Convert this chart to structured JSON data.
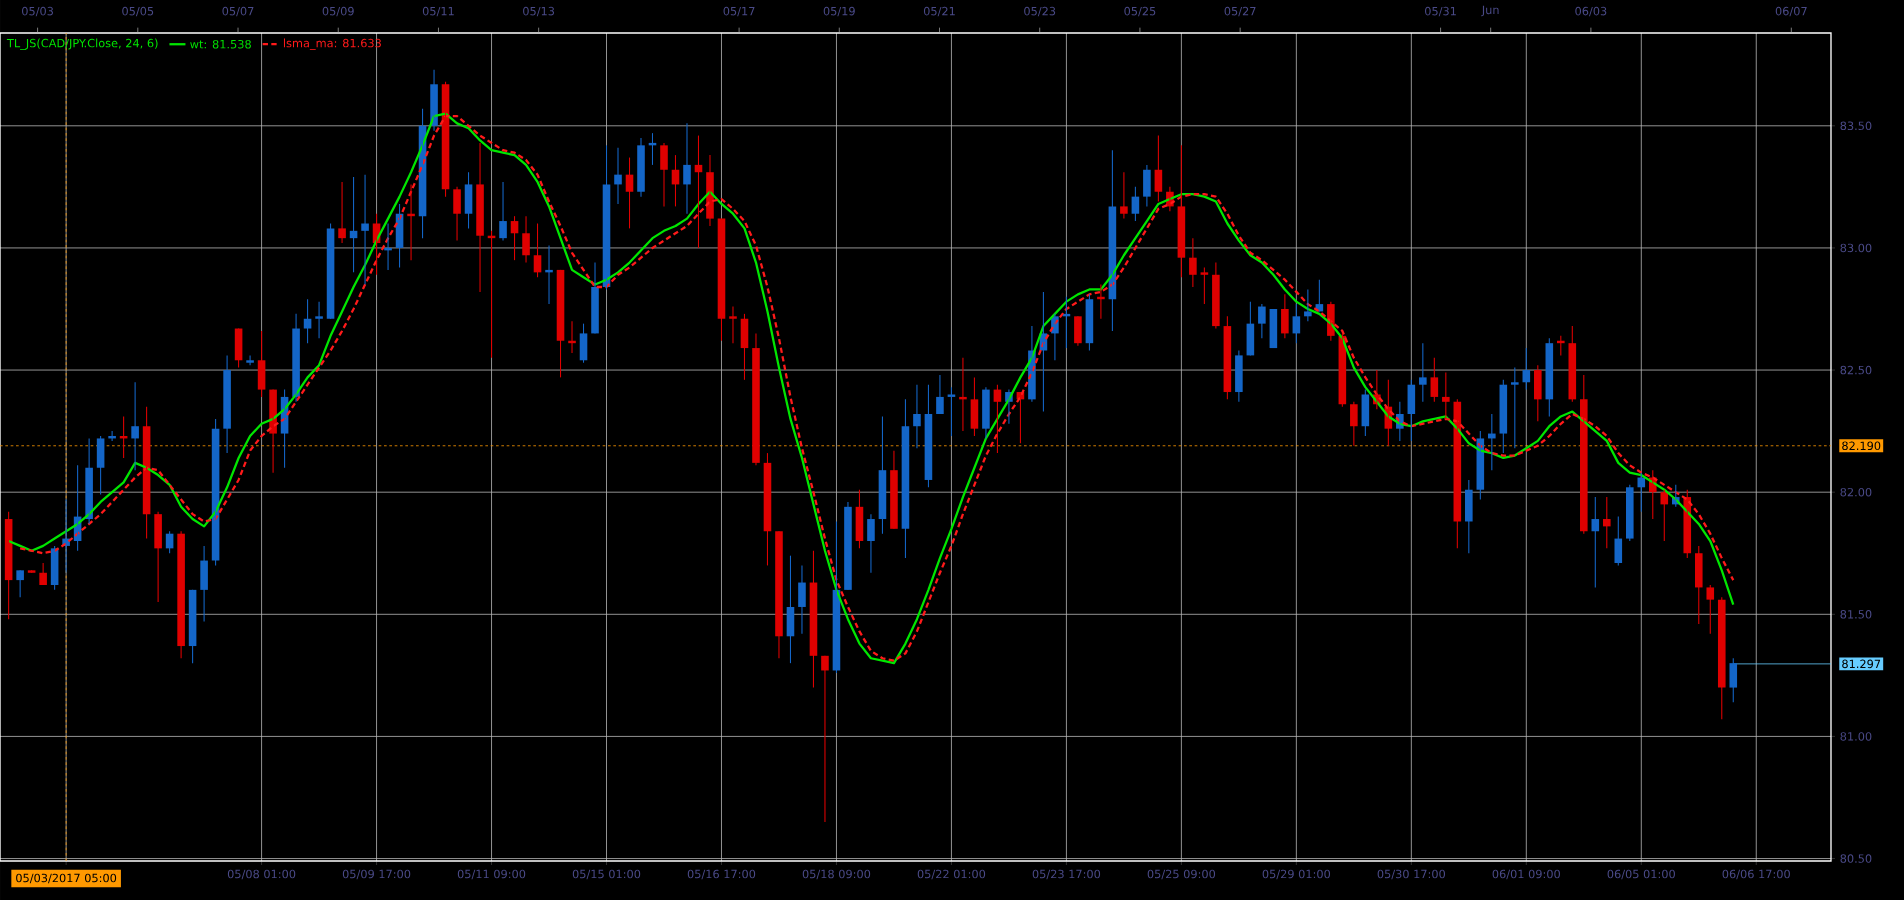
{
  "chart_data": {
    "type": "candlestick",
    "title": "TL_JS(CAD/JPY.Close, 24, 6)",
    "categories": [
      null,
      null,
      null,
      null,
      null,
      "05/03/2017 05:00",
      null,
      null,
      null,
      null,
      null,
      null,
      null,
      null,
      null,
      null,
      null,
      null,
      null,
      null,
      null,
      null,
      "05/08 01:00",
      null,
      null,
      null,
      null,
      null,
      null,
      null,
      null,
      null,
      "05/09 17:00",
      null,
      null,
      null,
      null,
      null,
      null,
      null,
      null,
      null,
      "05/11 09:00",
      null,
      null,
      null,
      null,
      null,
      null,
      null,
      null,
      null,
      "05/15 01:00",
      null,
      null,
      null,
      null,
      null,
      null,
      null,
      null,
      null,
      "05/16 17:00",
      null,
      null,
      null,
      null,
      null,
      null,
      null,
      null,
      null,
      "05/18 09:00",
      null,
      null,
      null,
      null,
      null,
      null,
      null,
      null,
      null,
      "05/22 01:00",
      null,
      null,
      null,
      null,
      null,
      null,
      null,
      null,
      null,
      "05/23 17:00",
      null,
      null,
      null,
      null,
      null,
      null,
      null,
      null,
      null,
      "05/25 09:00",
      null,
      null,
      null,
      null,
      null,
      null,
      null,
      null,
      null,
      "05/29 01:00",
      null,
      null,
      null,
      null,
      null,
      null,
      null,
      null,
      null,
      "05/30 17:00",
      null,
      null,
      null,
      null,
      null,
      null,
      null,
      null,
      null,
      "06/01 09:00",
      null,
      null,
      null,
      null,
      null,
      null,
      null,
      null,
      null,
      "06/05 01:00",
      null,
      null,
      null,
      null,
      null,
      null,
      null,
      null,
      null,
      "06/06 17:00"
    ],
    "ohlc": [
      [
        81.89,
        81.92,
        81.48,
        81.64
      ],
      [
        81.64,
        81.68,
        81.57,
        81.68
      ],
      [
        81.68,
        81.68,
        81.67,
        81.67
      ],
      [
        81.67,
        81.71,
        81.62,
        81.62
      ],
      [
        81.62,
        81.78,
        81.6,
        81.77
      ],
      [
        81.78,
        81.97,
        81.67,
        81.81
      ],
      [
        81.8,
        82.11,
        81.76,
        81.9
      ],
      [
        81.89,
        82.22,
        81.87,
        82.1
      ],
      [
        82.1,
        82.23,
        81.99,
        82.22
      ],
      [
        82.22,
        82.25,
        82.21,
        82.23
      ],
      [
        82.23,
        82.31,
        82.14,
        82.22
      ],
      [
        82.22,
        82.45,
        82.09,
        82.27
      ],
      [
        82.27,
        82.35,
        81.81,
        81.91
      ],
      [
        81.91,
        81.92,
        81.55,
        81.77
      ],
      [
        81.77,
        81.84,
        81.75,
        81.83
      ],
      [
        81.83,
        81.84,
        81.32,
        81.37
      ],
      [
        81.37,
        81.6,
        81.3,
        81.6
      ],
      [
        81.6,
        81.78,
        81.47,
        81.72
      ],
      [
        81.72,
        82.3,
        81.7,
        82.26
      ],
      [
        82.26,
        82.56,
        82.16,
        82.5
      ],
      [
        82.67,
        82.67,
        82.51,
        82.54
      ],
      [
        82.53,
        82.56,
        82.52,
        82.54
      ],
      [
        82.54,
        82.66,
        82.39,
        82.42
      ],
      [
        82.42,
        82.42,
        82.08,
        82.24
      ],
      [
        82.24,
        82.42,
        82.1,
        82.39
      ],
      [
        82.39,
        82.73,
        82.37,
        82.67
      ],
      [
        82.67,
        82.79,
        82.61,
        82.71
      ],
      [
        82.71,
        82.78,
        82.63,
        82.72
      ],
      [
        82.71,
        83.1,
        82.71,
        83.08
      ],
      [
        83.08,
        83.27,
        83.02,
        83.04
      ],
      [
        83.04,
        83.29,
        82.9,
        83.07
      ],
      [
        83.07,
        83.3,
        82.85,
        83.1
      ],
      [
        83.1,
        83.14,
        82.89,
        83.02
      ],
      [
        82.99,
        83.1,
        82.91,
        83.0
      ],
      [
        83.0,
        83.18,
        82.92,
        83.14
      ],
      [
        83.14,
        83.26,
        82.95,
        83.13
      ],
      [
        83.13,
        83.57,
        83.04,
        83.5
      ],
      [
        83.5,
        83.73,
        83.48,
        83.67
      ],
      [
        83.67,
        83.68,
        83.21,
        83.24
      ],
      [
        83.24,
        83.25,
        83.03,
        83.14
      ],
      [
        83.14,
        83.31,
        83.08,
        83.26
      ],
      [
        83.26,
        83.43,
        82.82,
        83.05
      ],
      [
        83.05,
        83.07,
        82.55,
        83.04
      ],
      [
        83.04,
        83.27,
        83.03,
        83.11
      ],
      [
        83.11,
        83.13,
        82.95,
        83.06
      ],
      [
        83.06,
        83.13,
        82.94,
        82.97
      ],
      [
        82.97,
        83.1,
        82.88,
        82.9
      ],
      [
        82.9,
        83.01,
        82.77,
        82.91
      ],
      [
        82.91,
        82.91,
        82.47,
        82.62
      ],
      [
        82.62,
        82.7,
        82.57,
        82.61
      ],
      [
        82.54,
        82.69,
        82.53,
        82.65
      ],
      [
        82.65,
        82.94,
        82.65,
        82.84
      ],
      [
        82.84,
        83.42,
        82.83,
        83.26
      ],
      [
        83.26,
        83.41,
        83.18,
        83.3
      ],
      [
        83.3,
        83.37,
        83.08,
        83.23
      ],
      [
        83.23,
        83.45,
        83.21,
        83.42
      ],
      [
        83.42,
        83.47,
        83.34,
        83.43
      ],
      [
        83.42,
        83.43,
        83.17,
        83.32
      ],
      [
        83.32,
        83.38,
        83.17,
        83.26
      ],
      [
        83.26,
        83.51,
        83.14,
        83.34
      ],
      [
        83.34,
        83.46,
        83.0,
        83.31
      ],
      [
        83.31,
        83.38,
        83.09,
        83.12
      ],
      [
        83.12,
        83.12,
        82.62,
        82.71
      ],
      [
        82.72,
        82.76,
        82.61,
        82.71
      ],
      [
        82.71,
        82.73,
        82.46,
        82.59
      ],
      [
        82.59,
        82.65,
        82.11,
        82.12
      ],
      [
        82.12,
        82.16,
        81.7,
        81.84
      ],
      [
        81.84,
        81.84,
        81.32,
        81.41
      ],
      [
        81.41,
        81.74,
        81.3,
        81.53
      ],
      [
        81.53,
        81.7,
        81.42,
        81.63
      ],
      [
        81.63,
        81.76,
        81.2,
        81.33
      ],
      [
        81.33,
        81.33,
        80.65,
        81.27
      ],
      [
        81.27,
        81.88,
        81.26,
        81.6
      ],
      [
        81.6,
        81.96,
        81.6,
        81.94
      ],
      [
        81.94,
        82.01,
        81.77,
        81.8
      ],
      [
        81.8,
        81.91,
        81.67,
        81.89
      ],
      [
        81.89,
        82.31,
        81.83,
        82.09
      ],
      [
        82.09,
        82.17,
        81.85,
        81.85
      ],
      [
        81.85,
        82.38,
        81.73,
        82.27
      ],
      [
        82.27,
        82.44,
        82.18,
        82.32
      ],
      [
        82.05,
        82.44,
        82.02,
        82.32
      ],
      [
        82.32,
        82.48,
        82.32,
        82.39
      ],
      [
        82.39,
        82.43,
        82.23,
        82.4
      ],
      [
        82.39,
        82.55,
        82.25,
        82.38
      ],
      [
        82.38,
        82.47,
        82.23,
        82.26
      ],
      [
        82.26,
        82.43,
        82.22,
        82.42
      ],
      [
        82.42,
        82.44,
        82.16,
        82.37
      ],
      [
        82.37,
        82.42,
        82.28,
        82.41
      ],
      [
        82.41,
        82.41,
        82.2,
        82.38
      ],
      [
        82.38,
        82.68,
        82.37,
        82.58
      ],
      [
        82.58,
        82.82,
        82.33,
        82.65
      ],
      [
        82.65,
        82.73,
        82.54,
        82.72
      ],
      [
        82.72,
        82.8,
        82.59,
        82.73
      ],
      [
        82.72,
        82.72,
        82.6,
        82.61
      ],
      [
        82.61,
        82.81,
        82.58,
        82.79
      ],
      [
        82.8,
        82.85,
        82.71,
        82.79
      ],
      [
        82.79,
        83.4,
        82.66,
        83.17
      ],
      [
        83.17,
        83.31,
        83.12,
        83.14
      ],
      [
        83.14,
        83.25,
        83.11,
        83.21
      ],
      [
        83.21,
        83.34,
        83.17,
        83.32
      ],
      [
        83.32,
        83.46,
        83.19,
        83.23
      ],
      [
        83.23,
        83.25,
        83.15,
        83.17
      ],
      [
        83.17,
        83.42,
        82.88,
        82.96
      ],
      [
        82.96,
        83.04,
        82.84,
        82.89
      ],
      [
        82.9,
        82.92,
        82.77,
        82.89
      ],
      [
        82.89,
        82.94,
        82.67,
        82.68
      ],
      [
        82.68,
        82.72,
        82.38,
        82.41
      ],
      [
        82.41,
        82.58,
        82.37,
        82.56
      ],
      [
        82.56,
        82.78,
        82.56,
        82.69
      ],
      [
        82.69,
        82.77,
        82.63,
        82.76
      ],
      [
        82.59,
        82.75,
        82.59,
        82.75
      ],
      [
        82.75,
        82.81,
        82.63,
        82.65
      ],
      [
        82.65,
        82.77,
        82.61,
        82.72
      ],
      [
        82.72,
        82.83,
        82.7,
        82.74
      ],
      [
        82.74,
        82.87,
        82.74,
        82.77
      ],
      [
        82.77,
        82.78,
        82.62,
        82.64
      ],
      [
        82.64,
        82.65,
        82.35,
        82.36
      ],
      [
        82.36,
        82.37,
        82.19,
        82.27
      ],
      [
        82.27,
        82.42,
        82.23,
        82.4
      ],
      [
        82.4,
        82.5,
        82.34,
        82.36
      ],
      [
        82.35,
        82.46,
        82.19,
        82.26
      ],
      [
        82.26,
        82.37,
        82.21,
        82.32
      ],
      [
        82.32,
        82.46,
        82.21,
        82.44
      ],
      [
        82.44,
        82.61,
        82.37,
        82.47
      ],
      [
        82.47,
        82.55,
        82.37,
        82.39
      ],
      [
        82.39,
        82.49,
        82.3,
        82.37
      ],
      [
        82.37,
        82.38,
        81.77,
        81.88
      ],
      [
        81.88,
        82.05,
        81.75,
        82.01
      ],
      [
        82.01,
        82.25,
        81.97,
        82.22
      ],
      [
        82.22,
        82.32,
        82.09,
        82.24
      ],
      [
        82.24,
        82.46,
        82.16,
        82.44
      ],
      [
        82.44,
        82.51,
        82.18,
        82.45
      ],
      [
        82.45,
        82.59,
        82.42,
        82.5
      ],
      [
        82.5,
        82.52,
        82.29,
        82.38
      ],
      [
        82.38,
        82.63,
        82.31,
        82.61
      ],
      [
        82.62,
        82.64,
        82.56,
        82.61
      ],
      [
        82.61,
        82.68,
        82.37,
        82.38
      ],
      [
        82.38,
        82.48,
        81.83,
        81.84
      ],
      [
        81.84,
        81.98,
        81.61,
        81.89
      ],
      [
        81.89,
        81.98,
        81.77,
        81.86
      ],
      [
        81.71,
        81.9,
        81.7,
        81.81
      ],
      [
        81.81,
        82.03,
        81.8,
        82.02
      ],
      [
        82.02,
        82.08,
        81.92,
        82.06
      ],
      [
        82.06,
        82.09,
        81.89,
        82.0
      ],
      [
        82.0,
        82.01,
        81.8,
        81.95
      ],
      [
        81.95,
        82.03,
        81.94,
        81.98
      ],
      [
        81.98,
        82.01,
        81.73,
        81.75
      ],
      [
        81.75,
        81.78,
        81.46,
        81.61
      ],
      [
        81.61,
        81.62,
        81.42,
        81.56
      ],
      [
        81.56,
        81.57,
        81.07,
        81.2
      ],
      [
        81.2,
        81.32,
        81.14,
        81.3
      ],
      null,
      null
    ],
    "series": [
      {
        "name": "wt: 81.538",
        "type": "line",
        "color": "#00e600",
        "line_style": "solid",
        "values": [
          81.8,
          81.78,
          81.76,
          81.78,
          81.81,
          81.84,
          81.87,
          81.91,
          81.96,
          82.0,
          82.04,
          82.12,
          82.1,
          82.07,
          82.03,
          81.94,
          81.89,
          81.86,
          81.92,
          82.02,
          82.14,
          82.23,
          82.28,
          82.3,
          82.34,
          82.4,
          82.47,
          82.52,
          82.64,
          82.74,
          82.84,
          82.93,
          83.03,
          83.12,
          83.21,
          83.31,
          83.42,
          83.54,
          83.55,
          83.51,
          83.49,
          83.44,
          83.4,
          83.39,
          83.38,
          83.34,
          83.27,
          83.17,
          83.04,
          82.91,
          82.88,
          82.85,
          82.87,
          82.9,
          82.94,
          82.99,
          83.04,
          83.07,
          83.09,
          83.12,
          83.18,
          83.23,
          83.18,
          83.14,
          83.08,
          82.94,
          82.74,
          82.51,
          82.3,
          82.14,
          81.95,
          81.76,
          81.6,
          81.48,
          81.38,
          81.32,
          81.31,
          81.3,
          81.38,
          81.48,
          81.6,
          81.73,
          81.85,
          81.98,
          82.1,
          82.22,
          82.3,
          82.38,
          82.47,
          82.55,
          82.68,
          82.73,
          82.78,
          82.81,
          82.83,
          82.83,
          82.89,
          82.97,
          83.04,
          83.11,
          83.18,
          83.2,
          83.22,
          83.22,
          83.21,
          83.19,
          83.1,
          83.03,
          82.97,
          82.94,
          82.89,
          82.83,
          82.78,
          82.75,
          82.73,
          82.69,
          82.63,
          82.51,
          82.43,
          82.37,
          82.31,
          82.28,
          82.27,
          82.29,
          82.3,
          82.31,
          82.26,
          82.2,
          82.17,
          82.16,
          82.14,
          82.15,
          82.18,
          82.21,
          82.27,
          82.31,
          82.33,
          82.29,
          82.25,
          82.21,
          82.12,
          82.08,
          82.07,
          82.04,
          82.01,
          81.97,
          81.92,
          81.87,
          81.8,
          81.68,
          81.54,
          null,
          null
        ]
      },
      {
        "name": "lsma_ma: 81.633",
        "type": "line",
        "color": "#ff1a1a",
        "line_style": "dashed",
        "values": [
          null,
          81.77,
          81.76,
          81.75,
          81.76,
          81.79,
          81.83,
          81.87,
          81.91,
          81.96,
          82.01,
          82.06,
          82.1,
          82.09,
          82.03,
          81.97,
          81.91,
          81.88,
          81.89,
          81.97,
          82.05,
          82.17,
          82.23,
          82.27,
          82.3,
          82.37,
          82.44,
          82.51,
          82.58,
          82.66,
          82.75,
          82.85,
          82.95,
          83.04,
          83.12,
          83.23,
          83.34,
          83.46,
          83.54,
          83.54,
          83.5,
          83.46,
          83.43,
          83.4,
          83.39,
          83.36,
          83.3,
          83.19,
          83.09,
          82.98,
          82.91,
          82.84,
          82.84,
          82.89,
          82.92,
          82.96,
          83.0,
          83.03,
          83.06,
          83.09,
          83.14,
          83.19,
          83.2,
          83.16,
          83.11,
          83.01,
          82.84,
          82.63,
          82.39,
          82.18,
          82.0,
          81.81,
          81.64,
          81.53,
          81.43,
          81.35,
          81.32,
          81.31,
          81.34,
          81.43,
          81.55,
          81.67,
          81.78,
          81.91,
          82.03,
          82.15,
          82.24,
          82.32,
          82.39,
          82.49,
          82.61,
          82.69,
          82.75,
          82.78,
          82.81,
          82.82,
          82.85,
          82.92,
          83.0,
          83.08,
          83.16,
          83.18,
          83.21,
          83.22,
          83.22,
          83.21,
          83.14,
          83.05,
          82.98,
          82.95,
          82.91,
          82.87,
          82.82,
          82.77,
          82.74,
          82.7,
          82.66,
          82.55,
          82.47,
          82.4,
          82.34,
          82.29,
          82.27,
          82.28,
          82.29,
          82.3,
          82.29,
          82.24,
          82.19,
          82.16,
          82.15,
          82.15,
          82.17,
          82.19,
          82.23,
          82.28,
          82.32,
          82.3,
          82.27,
          82.23,
          82.16,
          82.11,
          82.08,
          82.06,
          82.03,
          82.0,
          81.97,
          81.91,
          81.83,
          81.73,
          81.64,
          null,
          null
        ]
      }
    ],
    "ylim": [
      80.49,
      83.88
    ],
    "yticks": [
      {
        "value": 80.5,
        "label": "80.50"
      },
      {
        "value": 81,
        "label": "81.00"
      },
      {
        "value": 81.5,
        "label": "81.50"
      },
      {
        "value": 82,
        "label": "82.00"
      },
      {
        "value": 82.5,
        "label": "82.50"
      },
      {
        "value": 83,
        "label": "83.00"
      },
      {
        "value": 83.5,
        "label": "83.50"
      }
    ],
    "x2lim": [
      "2017-05-02T06:00",
      "2017-06-07T19:00"
    ],
    "x2ticks": [
      {
        "value": "2017-05-03",
        "label": "05/03"
      },
      {
        "value": "2017-05-05",
        "label": "05/05"
      },
      {
        "value": "2017-05-07",
        "label": "05/07"
      },
      {
        "value": "2017-05-09",
        "label": "05/09"
      },
      {
        "value": "2017-05-11",
        "label": "05/11"
      },
      {
        "value": "2017-05-13",
        "label": "05/13"
      },
      {
        "value": "2017-05-17",
        "label": "05/17"
      },
      {
        "value": "2017-05-19",
        "label": "05/19"
      },
      {
        "value": "2017-05-21",
        "label": "05/21"
      },
      {
        "value": "2017-05-23",
        "label": "05/23"
      },
      {
        "value": "2017-05-25",
        "label": "05/25"
      },
      {
        "value": "2017-05-27",
        "label": "05/27"
      },
      {
        "value": "2017-05-31",
        "label": "05/31"
      },
      {
        "value": "2017-06-01",
        "label": "Jun"
      },
      {
        "value": "2017-06-03",
        "label": "06/03"
      },
      {
        "value": "2017-06-07",
        "label": "06/07"
      }
    ],
    "ref_lines": [
      {
        "axis": "y",
        "value": 82.19,
        "label": "82.190",
        "color": "#ff9900",
        "line_style": "dashed"
      },
      {
        "axis": "y",
        "value": 81.297,
        "label": "81.297",
        "color": "#66ccff",
        "line_style": "solid"
      },
      {
        "axis": "x",
        "value": "05/03/2017 05:00",
        "color": "#ff9900",
        "line_style": "dashed"
      }
    ],
    "grid": true,
    "legend": "top left"
  }
}
